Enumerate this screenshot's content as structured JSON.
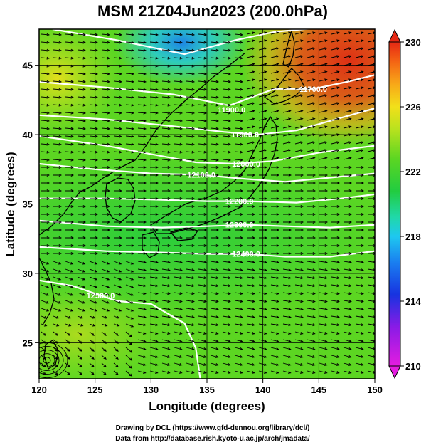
{
  "title": "MSM 21Z04Jun2023 (200.0hPa)",
  "chart_data": {
    "type": "heatmap",
    "title": "MSM 21Z04Jun2023 (200.0hPa)",
    "xlabel": "Longitude (degrees)",
    "ylabel": "Latitude  (degrees)",
    "xlim": [
      120,
      150
    ],
    "ylim": [
      22.4,
      47.6
    ],
    "x_ticks": [
      "120",
      "125",
      "130",
      "135",
      "140",
      "145",
      "150"
    ],
    "y_ticks": [
      "25",
      "30",
      "35",
      "40",
      "45"
    ],
    "x_tick_values": [
      120,
      125,
      130,
      135,
      140,
      145,
      150
    ],
    "y_tick_values": [
      25,
      30,
      35,
      40,
      45
    ],
    "grid": true,
    "colorbar": {
      "min": 210,
      "max": 230,
      "tick_labels": [
        "210",
        "214",
        "218",
        "222",
        "226",
        "230"
      ],
      "tick_values": [
        210,
        214,
        218,
        222,
        226,
        230
      ],
      "colors": [
        "#e41ce0",
        "#8a1be6",
        "#1733e0",
        "#1a7ff0",
        "#1ec8f0",
        "#20d8a8",
        "#22cc40",
        "#5cd622",
        "#b8e21e",
        "#f2e01a",
        "#f8a818",
        "#f46414",
        "#e62814"
      ]
    },
    "contour_labels": [
      {
        "text": "11700.0",
        "lon": 144.5,
        "lat": 43.3
      },
      {
        "text": "11900.0",
        "lon": 137.2,
        "lat": 41.8
      },
      {
        "text": "11900.0",
        "lon": 138.4,
        "lat": 40.0
      },
      {
        "text": "12000.0",
        "lon": 138.5,
        "lat": 37.9
      },
      {
        "text": "12100.0",
        "lon": 134.5,
        "lat": 37.1
      },
      {
        "text": "12200.0",
        "lon": 137.9,
        "lat": 35.2
      },
      {
        "text": "12300.0",
        "lon": 137.9,
        "lat": 33.5
      },
      {
        "text": "12400.0",
        "lon": 138.5,
        "lat": 31.4
      },
      {
        "text": "12500.0",
        "lon": 125.5,
        "lat": 28.4
      }
    ],
    "contours": [
      [
        [
          121.2,
          47.6
        ],
        [
          127,
          46.8
        ],
        [
          133,
          45.8
        ],
        [
          137.5,
          46.8
        ],
        [
          141,
          47.4
        ],
        [
          145,
          47.7
        ]
      ],
      [
        [
          120,
          43.8
        ],
        [
          126,
          43.4
        ],
        [
          132,
          42.9
        ],
        [
          137,
          42.1
        ],
        [
          141,
          43.3
        ],
        [
          144.5,
          43.3
        ],
        [
          147.5,
          43.8
        ],
        [
          150,
          44.3
        ]
      ],
      [
        [
          120,
          41.4
        ],
        [
          126,
          41.1
        ],
        [
          132,
          40.6
        ],
        [
          136.5,
          40.2
        ],
        [
          139.5,
          40.0
        ],
        [
          143,
          40.3
        ],
        [
          146.5,
          41.1
        ],
        [
          150,
          41.9
        ]
      ],
      [
        [
          120,
          39.9
        ],
        [
          126,
          39.2
        ],
        [
          130,
          38.6
        ],
        [
          134,
          38.0
        ],
        [
          137.5,
          37.9
        ],
        [
          141,
          38.1
        ],
        [
          145,
          38.7
        ],
        [
          150,
          39.2
        ]
      ],
      [
        [
          120,
          37.9
        ],
        [
          125,
          37.5
        ],
        [
          130,
          37.2
        ],
        [
          134.5,
          37.1
        ],
        [
          138.5,
          36.8
        ],
        [
          142,
          36.6
        ],
        [
          146,
          36.9
        ],
        [
          150,
          37.2
        ]
      ],
      [
        [
          120,
          35.4
        ],
        [
          126,
          35.4
        ],
        [
          131,
          35.3
        ],
        [
          135,
          35.2
        ],
        [
          138.5,
          35.2
        ],
        [
          143,
          35.1
        ],
        [
          147,
          35.4
        ],
        [
          150,
          35.7
        ]
      ],
      [
        [
          120,
          33.8
        ],
        [
          126,
          33.4
        ],
        [
          131,
          33.3
        ],
        [
          135,
          33.4
        ],
        [
          138.5,
          33.5
        ],
        [
          142,
          33.4
        ],
        [
          146,
          33.3
        ],
        [
          150,
          33.5
        ]
      ],
      [
        [
          120,
          31.9
        ],
        [
          126,
          31.6
        ],
        [
          131,
          31.5
        ],
        [
          135,
          31.4
        ],
        [
          138.5,
          31.4
        ],
        [
          142,
          31.2
        ],
        [
          146,
          31.2
        ],
        [
          150,
          31.6
        ]
      ],
      [
        [
          120,
          29.5
        ],
        [
          123,
          29.1
        ],
        [
          125.5,
          28.4
        ],
        [
          127,
          28.0
        ],
        [
          130,
          27.8
        ],
        [
          133,
          26.4
        ],
        [
          134,
          24.6
        ],
        [
          134.4,
          22.4
        ]
      ]
    ]
  },
  "credits": {
    "line1": "Drawing by DCL (https://www.gfd-dennou.org/library/dcl/)",
    "line2": "Data from http://database.rish.kyoto-u.ac.jp/arch/jmadata/"
  }
}
